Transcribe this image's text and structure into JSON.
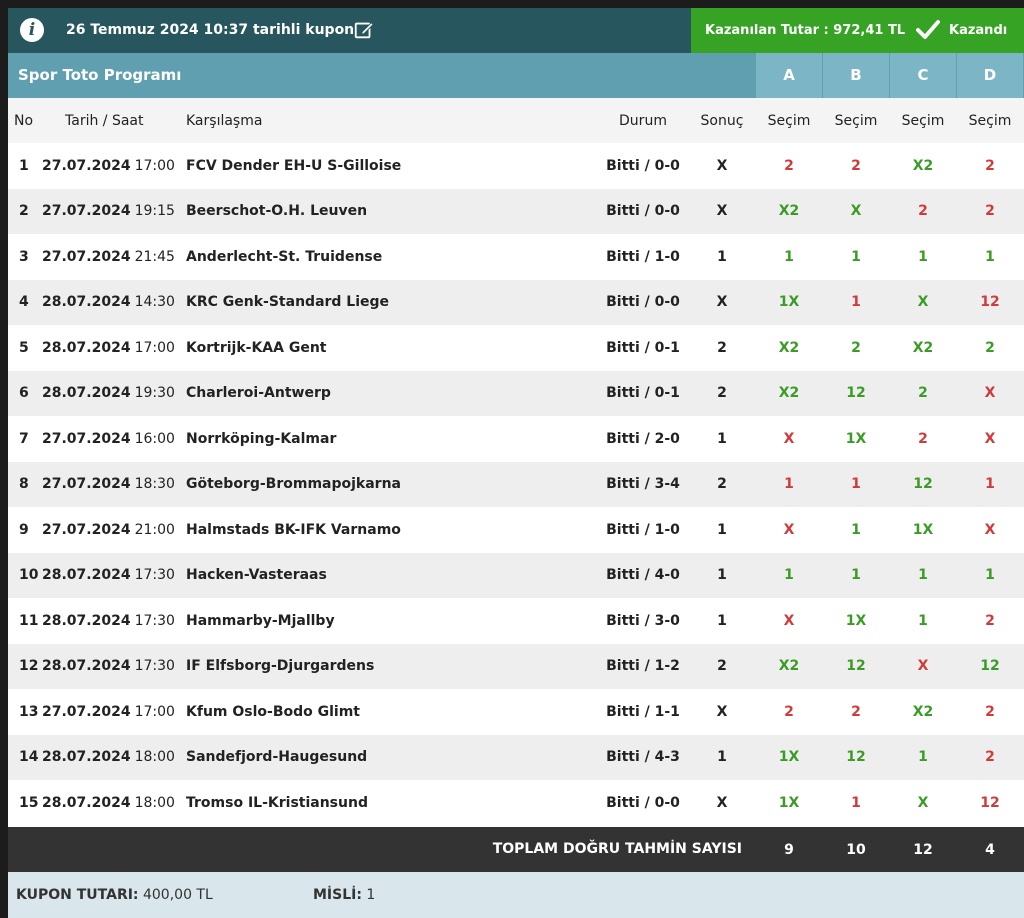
{
  "header": {
    "info_icon": "info-icon",
    "coupon_title": "26 Temmuz 2024 10:37 tarihli kupon",
    "edit_icon": "edit-icon",
    "won_amount": "Kazanılan Tutar : 972,41 TL",
    "won_status": "Kazandı",
    "colors": {
      "header_bg": "#27565f",
      "won_bg": "#36a325",
      "title_bg": "#5f9fb0",
      "correct": "#3a9b25",
      "wrong": "#d23a3a"
    }
  },
  "program": {
    "title": "Spor Toto Programı",
    "columns": [
      "A",
      "B",
      "C",
      "D"
    ]
  },
  "table": {
    "headers": {
      "no": "No",
      "date": "Tarih / Saat",
      "match": "Karşılaşma",
      "status": "Durum",
      "result": "Sonuç",
      "pick": "Seçim"
    },
    "rows": [
      {
        "no": "1",
        "date": "27.07.2024",
        "time": "17:00",
        "match": "FCV Dender EH-U S-Gilloise",
        "status": "Bitti / 0-0",
        "result": "X",
        "picks": [
          "2",
          "2",
          "X2",
          "2"
        ],
        "ok": [
          false,
          false,
          true,
          false
        ]
      },
      {
        "no": "2",
        "date": "27.07.2024",
        "time": "19:15",
        "match": "Beerschot-O.H. Leuven",
        "status": "Bitti / 0-0",
        "result": "X",
        "picks": [
          "X2",
          "X",
          "2",
          "2"
        ],
        "ok": [
          true,
          true,
          false,
          false
        ]
      },
      {
        "no": "3",
        "date": "27.07.2024",
        "time": "21:45",
        "match": "Anderlecht-St. Truidense",
        "status": "Bitti / 1-0",
        "result": "1",
        "picks": [
          "1",
          "1",
          "1",
          "1"
        ],
        "ok": [
          true,
          true,
          true,
          true
        ]
      },
      {
        "no": "4",
        "date": "28.07.2024",
        "time": "14:30",
        "match": "KRC Genk-Standard Liege",
        "status": "Bitti / 0-0",
        "result": "X",
        "picks": [
          "1X",
          "1",
          "X",
          "12"
        ],
        "ok": [
          true,
          false,
          true,
          false
        ]
      },
      {
        "no": "5",
        "date": "28.07.2024",
        "time": "17:00",
        "match": "Kortrijk-KAA Gent",
        "status": "Bitti / 0-1",
        "result": "2",
        "picks": [
          "X2",
          "2",
          "X2",
          "2"
        ],
        "ok": [
          true,
          true,
          true,
          true
        ]
      },
      {
        "no": "6",
        "date": "28.07.2024",
        "time": "19:30",
        "match": "Charleroi-Antwerp",
        "status": "Bitti / 0-1",
        "result": "2",
        "picks": [
          "X2",
          "12",
          "2",
          "X"
        ],
        "ok": [
          true,
          true,
          true,
          false
        ]
      },
      {
        "no": "7",
        "date": "27.07.2024",
        "time": "16:00",
        "match": "Norrköping-Kalmar",
        "status": "Bitti / 2-0",
        "result": "1",
        "picks": [
          "X",
          "1X",
          "2",
          "X"
        ],
        "ok": [
          false,
          true,
          false,
          false
        ]
      },
      {
        "no": "8",
        "date": "27.07.2024",
        "time": "18:30",
        "match": "Göteborg-Brommapojkarna",
        "status": "Bitti / 3-4",
        "result": "2",
        "picks": [
          "1",
          "1",
          "12",
          "1"
        ],
        "ok": [
          false,
          false,
          true,
          false
        ]
      },
      {
        "no": "9",
        "date": "27.07.2024",
        "time": "21:00",
        "match": "Halmstads BK-IFK Varnamo",
        "status": "Bitti / 1-0",
        "result": "1",
        "picks": [
          "X",
          "1",
          "1X",
          "X"
        ],
        "ok": [
          false,
          true,
          true,
          false
        ]
      },
      {
        "no": "10",
        "date": "28.07.2024",
        "time": "17:30",
        "match": "Hacken-Vasteraas",
        "status": "Bitti / 4-0",
        "result": "1",
        "picks": [
          "1",
          "1",
          "1",
          "1"
        ],
        "ok": [
          true,
          true,
          true,
          true
        ]
      },
      {
        "no": "11",
        "date": "28.07.2024",
        "time": "17:30",
        "match": "Hammarby-Mjallby",
        "status": "Bitti / 3-0",
        "result": "1",
        "picks": [
          "X",
          "1X",
          "1",
          "2"
        ],
        "ok": [
          false,
          true,
          true,
          false
        ]
      },
      {
        "no": "12",
        "date": "28.07.2024",
        "time": "17:30",
        "match": "IF Elfsborg-Djurgardens",
        "status": "Bitti / 1-2",
        "result": "2",
        "picks": [
          "X2",
          "12",
          "X",
          "12"
        ],
        "ok": [
          true,
          true,
          false,
          true
        ]
      },
      {
        "no": "13",
        "date": "27.07.2024",
        "time": "17:00",
        "match": "Kfum Oslo-Bodo Glimt",
        "status": "Bitti / 1-1",
        "result": "X",
        "picks": [
          "2",
          "2",
          "X2",
          "2"
        ],
        "ok": [
          false,
          false,
          true,
          false
        ]
      },
      {
        "no": "14",
        "date": "28.07.2024",
        "time": "18:00",
        "match": "Sandefjord-Haugesund",
        "status": "Bitti / 4-3",
        "result": "1",
        "picks": [
          "1X",
          "12",
          "1",
          "2"
        ],
        "ok": [
          true,
          true,
          true,
          false
        ]
      },
      {
        "no": "15",
        "date": "28.07.2024",
        "time": "18:00",
        "match": "Tromso IL-Kristiansund",
        "status": "Bitti / 0-0",
        "result": "X",
        "picks": [
          "1X",
          "1",
          "X",
          "12"
        ],
        "ok": [
          true,
          false,
          true,
          false
        ]
      }
    ]
  },
  "totals": {
    "label": "TOPLAM DOĞRU TAHMİN SAYISI",
    "values": [
      "9",
      "10",
      "12",
      "4"
    ]
  },
  "footer": {
    "coupon_label": "KUPON TUTARI:",
    "coupon_value": "400,00 TL",
    "misli_label": "MİSLİ:",
    "misli_value": "1"
  }
}
